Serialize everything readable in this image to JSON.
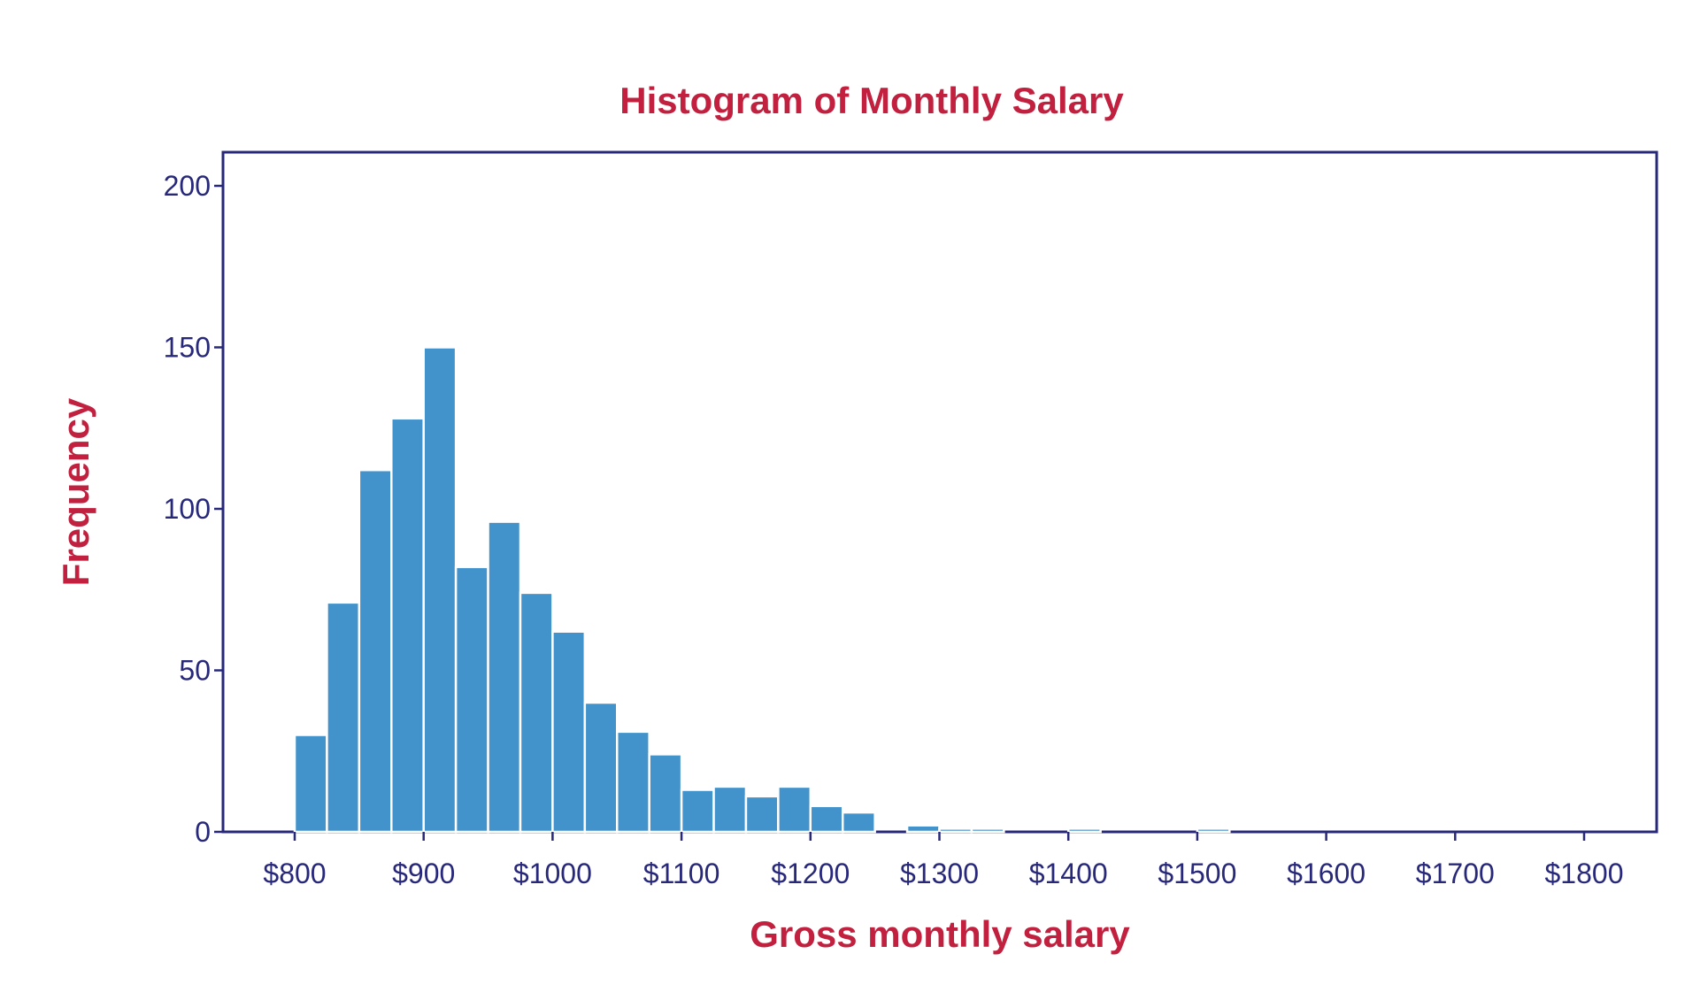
{
  "chart_data": {
    "type": "bar",
    "title": "Histogram of Monthly Salary",
    "xlabel": "Gross monthly salary",
    "ylabel": "Frequency",
    "xlim": [
      750,
      1810
    ],
    "ylim": [
      0,
      210
    ],
    "x_ticks": [
      800,
      900,
      1000,
      1100,
      1200,
      1300,
      1400,
      1500,
      1600,
      1700,
      1800
    ],
    "x_tick_labels": [
      "$800",
      "$900",
      "$1000",
      "$1100",
      "$1200",
      "$1300",
      "$1400",
      "$1500",
      "$1600",
      "$1700",
      "$1800"
    ],
    "y_ticks": [
      0,
      50,
      100,
      150,
      200
    ],
    "y_tick_labels": [
      "0",
      "50",
      "100",
      "150",
      "200"
    ],
    "bin_width": 25,
    "bin_starts": [
      800,
      825,
      850,
      875,
      900,
      925,
      950,
      975,
      1000,
      1025,
      1050,
      1075,
      1100,
      1125,
      1150,
      1175,
      1200,
      1225,
      1250,
      1275,
      1300,
      1325,
      1350,
      1375,
      1400,
      1425,
      1450,
      1475,
      1500,
      1525,
      1550,
      1575,
      1600,
      1625,
      1650,
      1675,
      1700,
      1725,
      1750,
      1775,
      1800
    ],
    "values": [
      30,
      71,
      112,
      128,
      150,
      82,
      96,
      74,
      62,
      40,
      31,
      24,
      13,
      14,
      11,
      14,
      8,
      6,
      0,
      2,
      1,
      1,
      0,
      0,
      1,
      0,
      0,
      0,
      1,
      0,
      0,
      0,
      0,
      0,
      0,
      0,
      0,
      0,
      0,
      0,
      0
    ],
    "grid": false,
    "legend": "none",
    "colors": {
      "bar_fill": "#4293cb",
      "bar_edge": "#ffffff",
      "axis": "#27287a",
      "tick_text": "#27287a",
      "title": "#c1203f",
      "background": "#ffffff"
    }
  }
}
